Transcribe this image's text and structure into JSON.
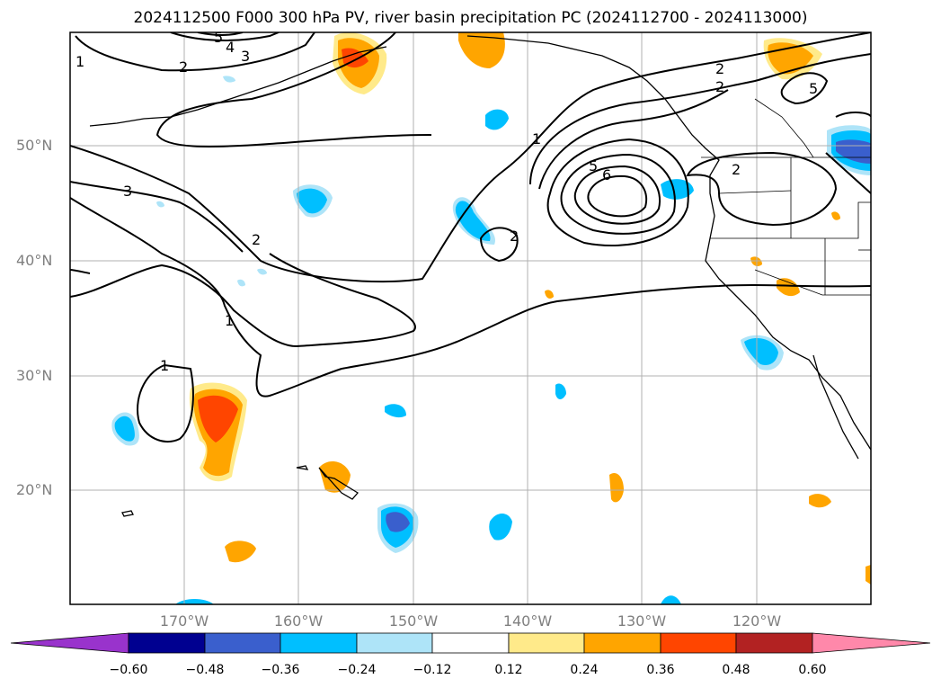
{
  "title": "2024112500 F000 300 hPa PV, river basin precipitation PC (2024112700 - 2024113000)",
  "lat_labels": [
    "50°N",
    "40°N",
    "30°N",
    "20°N"
  ],
  "lon_labels": [
    "170°W",
    "160°W",
    "150°W",
    "140°W",
    "130°W",
    "120°W"
  ],
  "contour_labels": [
    "5",
    "4",
    "3",
    "2",
    "1",
    "3",
    "2",
    "1",
    "1",
    "2",
    "1",
    "2",
    "5",
    "6",
    "2",
    "5",
    "2"
  ],
  "colorbar": {
    "ticks": [
      "−0.60",
      "−0.48",
      "−0.36",
      "−0.24",
      "−0.12",
      "0.12",
      "0.24",
      "0.36",
      "0.48",
      "0.60"
    ],
    "colors": [
      "#9933cc",
      "#000090",
      "#3a5fcd",
      "#00bfff",
      "#aee4f8",
      "#ffffff",
      "#ffea8a",
      "#ffa500",
      "#ff4500",
      "#b22222",
      "#ff88aa"
    ]
  }
}
